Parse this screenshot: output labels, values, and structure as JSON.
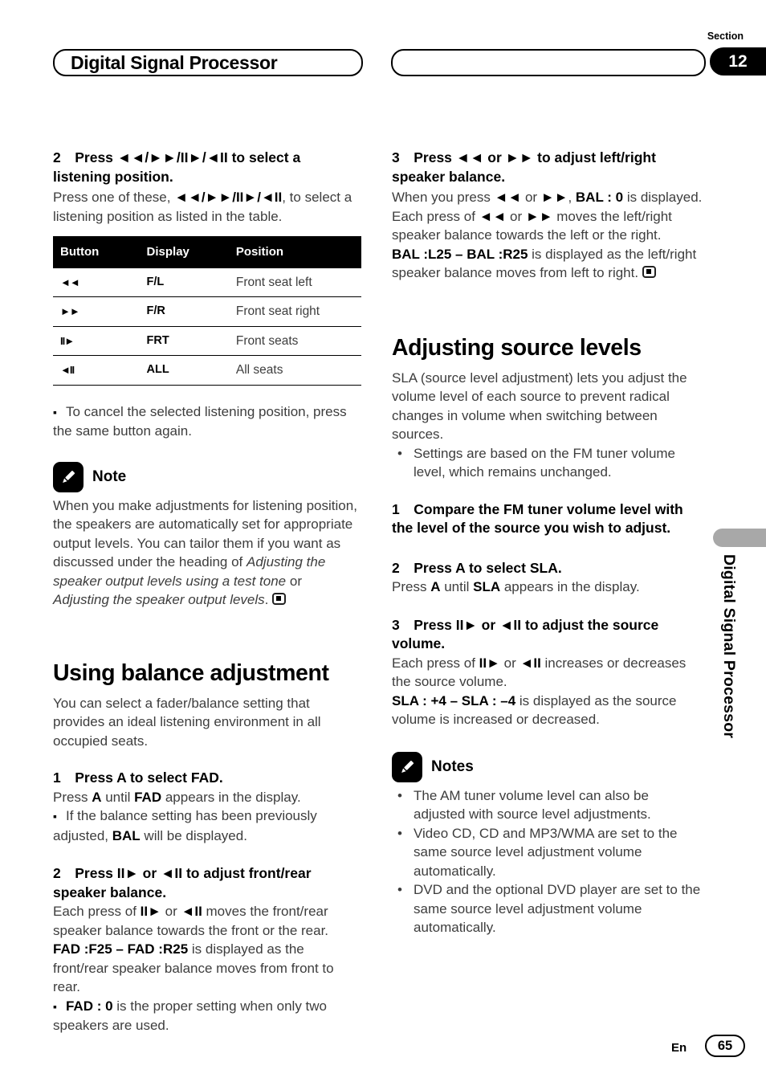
{
  "header": {
    "title": "Digital Signal Processor",
    "section_label": "Section",
    "section_number": "12"
  },
  "sidebar": {
    "vertical_label": "Digital Signal Processor"
  },
  "footer": {
    "language": "En",
    "page_number": "65"
  },
  "left_column": {
    "step2": {
      "heading": "2 Press ◄◄/►►/II►/◄II to select a listening position.",
      "body": [
        {
          "t": "Press one of these, "
        },
        {
          "t": "◄◄/►►/II►/◄II",
          "b": true
        },
        {
          "t": ", to select a listening position as listed in the table."
        }
      ]
    },
    "table": {
      "headers": [
        "Button",
        "Display",
        "Position"
      ],
      "rows": [
        [
          "◄◄",
          "F/L",
          "Front seat left"
        ],
        [
          "►►",
          "F/R",
          "Front seat right"
        ],
        [
          "II►",
          "FRT",
          "Front seats"
        ],
        [
          "◄II",
          "ALL",
          "All seats"
        ]
      ]
    },
    "cancel_bullet": [
      {
        "t": "To cancel the selected listening position, press the same button again."
      }
    ],
    "note": {
      "label": "Note",
      "body": [
        {
          "t": "When you make adjustments for listening position, the speakers are automatically set for appropriate output levels. You can tailor them if you want as discussed under the heading of "
        },
        {
          "t": "Adjusting the speaker output levels using a test tone",
          "i": true
        },
        {
          "t": " or "
        },
        {
          "t": "Adjusting the speaker output levels",
          "i": true
        },
        {
          "t": "."
        }
      ]
    },
    "balance_section": {
      "title": "Using balance adjustment",
      "intro": "You can select a fader/balance setting that provides an ideal listening environment in all occupied seats."
    },
    "step1": {
      "heading": "1 Press A to select FAD.",
      "body": [
        {
          "t": "Press "
        },
        {
          "t": "A",
          "b": true
        },
        {
          "t": " until "
        },
        {
          "t": "FAD",
          "b": true
        },
        {
          "t": " appears in the display."
        }
      ],
      "bullet": [
        {
          "t": "If the balance setting has been previously adjusted, "
        },
        {
          "t": "BAL",
          "b": true
        },
        {
          "t": " will be displayed."
        }
      ]
    },
    "step2b": {
      "heading": "2 Press II► or ◄II to adjust front/rear speaker balance.",
      "body1": [
        {
          "t": "Each press of "
        },
        {
          "t": "II►",
          "b": true
        },
        {
          "t": " or "
        },
        {
          "t": "◄II",
          "b": true
        },
        {
          "t": " moves the front/rear speaker balance towards the front or the rear."
        }
      ],
      "body2": [
        {
          "t": "FAD :F25 – FAD :R25",
          "b": true
        },
        {
          "t": " is displayed as the front/rear speaker balance moves from front to rear."
        }
      ],
      "bullet": [
        {
          "t": "FAD : 0",
          "b": true
        },
        {
          "t": " is the proper setting when only two speakers are used."
        }
      ]
    }
  },
  "right_column": {
    "step3": {
      "heading": "3 Press ◄◄ or ►► to adjust left/right speaker balance.",
      "body1": [
        {
          "t": "When you press "
        },
        {
          "t": "◄◄",
          "b": true
        },
        {
          "t": " or "
        },
        {
          "t": "►►",
          "b": true
        },
        {
          "t": ", "
        },
        {
          "t": "BAL : 0",
          "b": true
        },
        {
          "t": " is displayed. Each press of "
        },
        {
          "t": "◄◄",
          "b": true
        },
        {
          "t": " or "
        },
        {
          "t": "►►",
          "b": true
        },
        {
          "t": " moves the left/right speaker balance towards the left or the right."
        }
      ],
      "body2": [
        {
          "t": "BAL :L25 – BAL :R25",
          "b": true
        },
        {
          "t": " is displayed as the left/right speaker balance moves from left to right."
        }
      ]
    },
    "sla_section": {
      "title": "Adjusting source levels",
      "intro": "SLA (source level adjustment) lets you adjust the volume level of each source to prevent radical changes in volume when switching between sources.",
      "bullet": "Settings are based on the FM tuner volume level, which remains unchanged."
    },
    "step1": {
      "heading": "1 Compare the FM tuner volume level with the level of the source you wish to adjust."
    },
    "step2": {
      "heading": "2 Press A to select SLA.",
      "body": [
        {
          "t": "Press "
        },
        {
          "t": "A",
          "b": true
        },
        {
          "t": " until "
        },
        {
          "t": "SLA",
          "b": true
        },
        {
          "t": " appears in the display."
        }
      ]
    },
    "step3b": {
      "heading": "3 Press II► or ◄II to adjust the source volume.",
      "body1": [
        {
          "t": "Each press of "
        },
        {
          "t": "II►",
          "b": true
        },
        {
          "t": " or "
        },
        {
          "t": "◄II",
          "b": true
        },
        {
          "t": " increases or decreases the source volume."
        }
      ],
      "body2": [
        {
          "t": "SLA : +4 – SLA : –4",
          "b": true
        },
        {
          "t": " is displayed as the source volume is increased or decreased."
        }
      ]
    },
    "notes": {
      "label": "Notes",
      "items": [
        "The AM tuner volume level can also be adjusted with source level adjustments.",
        "Video CD, CD and MP3/WMA are set to the same source level adjustment volume automatically.",
        "DVD and the optional DVD player are set to the same source level adjustment volume automatically."
      ]
    }
  }
}
